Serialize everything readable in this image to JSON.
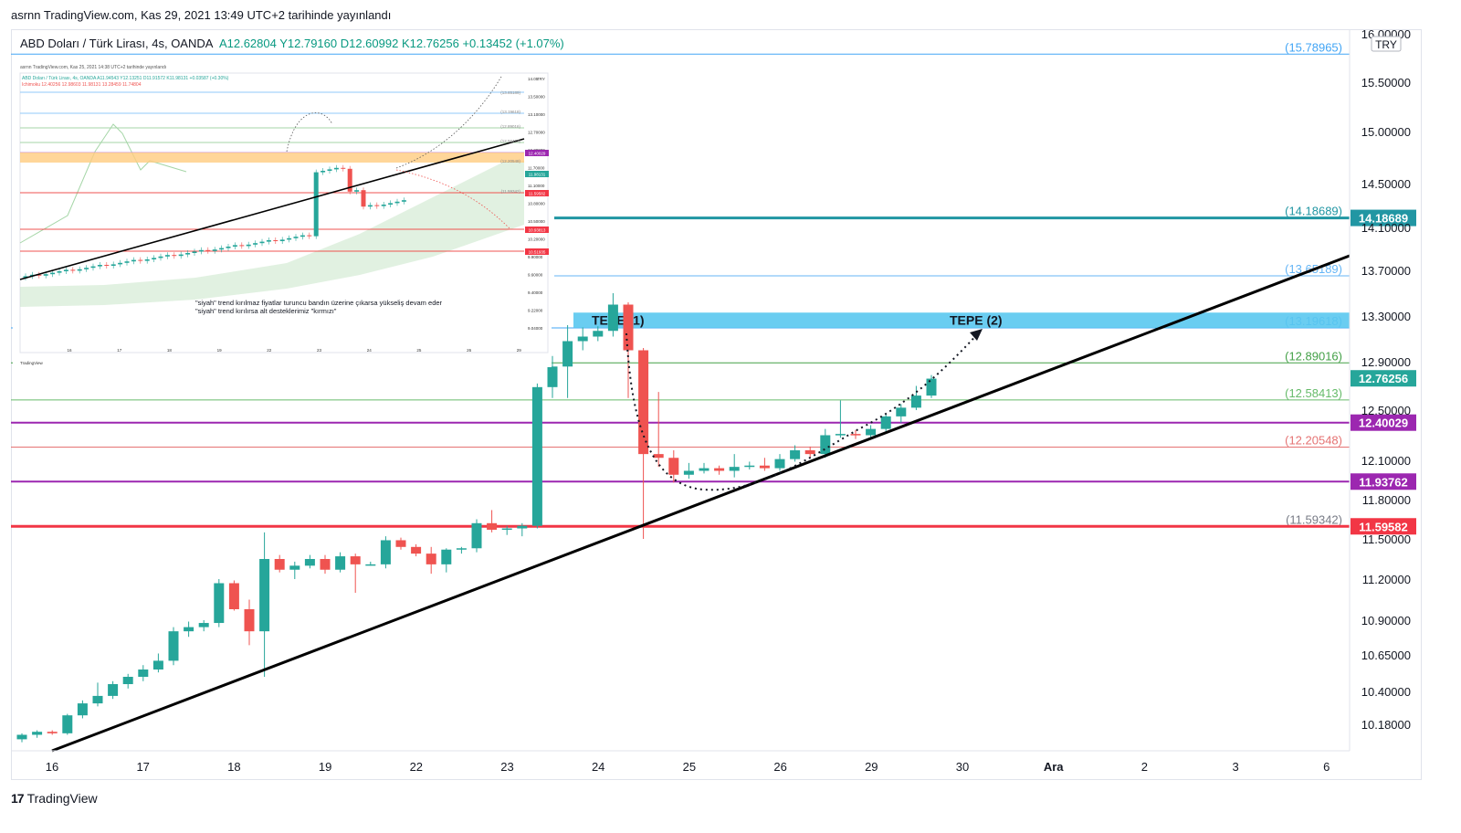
{
  "header": {
    "published": "asrnn TradingView.com, Kas 29, 2021 13:49 UTC+2 tarihinde yayınlandı",
    "symbol": "ABD Doları / Türk Lirası, 4s, OANDA",
    "ohlc": "A12.62804  Y12.79160  D12.60992  K12.76256  +0.13452 (+1.07%)"
  },
  "footer": {
    "logo_mark": "17",
    "logo_text": "TradingView"
  },
  "colors": {
    "up": "#26a69a",
    "down": "#ef5350",
    "teal_line": "#2196a3",
    "purple": "#9c27b0",
    "red": "#f23645",
    "green_line": "#66bb6a",
    "blue_zone": "#5ac8ef",
    "trend": "#000000"
  },
  "chart_data": {
    "type": "candlestick",
    "ylim": [
      10.0,
      16.0
    ],
    "currency_badge": "TRY",
    "y_ticks": [
      {
        "v": 16.0,
        "label": "16.00000"
      },
      {
        "v": 15.5,
        "label": "15.50000"
      },
      {
        "v": 15.0,
        "label": "15.00000"
      },
      {
        "v": 14.5,
        "label": "14.50000"
      },
      {
        "v": 14.1,
        "label": "14.10000"
      },
      {
        "v": 13.7,
        "label": "13.70000"
      },
      {
        "v": 13.3,
        "label": "13.30000"
      },
      {
        "v": 12.9,
        "label": "12.90000"
      },
      {
        "v": 12.5,
        "label": "12.50000"
      },
      {
        "v": 12.1,
        "label": "12.10000"
      },
      {
        "v": 11.8,
        "label": "11.80000"
      },
      {
        "v": 11.5,
        "label": "11.50000"
      },
      {
        "v": 11.2,
        "label": "11.20000"
      },
      {
        "v": 10.9,
        "label": "10.90000"
      },
      {
        "v": 10.65,
        "label": "10.65000"
      },
      {
        "v": 10.4,
        "label": "10.40000"
      },
      {
        "v": 10.18,
        "label": "10.18000"
      }
    ],
    "x_ticks": [
      "16",
      "17",
      "18",
      "19",
      "22",
      "23",
      "24",
      "25",
      "26",
      "29",
      "30",
      "Ara",
      "2",
      "3",
      "6"
    ],
    "levels": [
      {
        "value": 15.78965,
        "label": "(15.78965)",
        "color": "#42a5f5",
        "width": 1
      },
      {
        "value": 14.18689,
        "label": "(14.18689)",
        "color": "#2196a3",
        "width": 3,
        "badge": "14.18689"
      },
      {
        "value": 13.65189,
        "label": "(13.65189)",
        "color": "#64b5f6",
        "width": 1
      },
      {
        "value": 13.19618,
        "label": "(13.19618)",
        "color": "#42a5f5",
        "width": 1
      },
      {
        "value": 12.89016,
        "label": "(12.89016)",
        "color": "#43a047",
        "width": 1
      },
      {
        "value": 12.58413,
        "label": "(12.58413)",
        "color": "#66bb6a",
        "width": 1
      },
      {
        "value": 12.40029,
        "label": "",
        "color": "#9c27b0",
        "width": 2,
        "badge": "12.40029"
      },
      {
        "value": 12.20548,
        "label": "(12.20548)",
        "color": "#e57373",
        "width": 1
      },
      {
        "value": 11.93762,
        "label": "",
        "color": "#9c27b0",
        "width": 2,
        "badge": "11.93762"
      },
      {
        "value": 11.59342,
        "label": "(11.59342)",
        "color": "#9e9e9e",
        "width": 0
      },
      {
        "value": 11.59582,
        "label": "",
        "color": "#f23645",
        "width": 3,
        "badge": "11.59582"
      }
    ],
    "last_price": {
      "value": 12.76256,
      "label": "12.76256"
    },
    "zone": {
      "from": 13.19618,
      "to": 13.33,
      "labels": [
        "TEPE (1)",
        "TEPE (2)"
      ]
    },
    "trend_line": {
      "from": [
        0,
        10.02
      ],
      "to": [
        1.0,
        13.85
      ]
    },
    "candles": [
      [
        10.08,
        10.12,
        10.06,
        10.11
      ],
      [
        10.11,
        10.14,
        10.09,
        10.13
      ],
      [
        10.13,
        10.14,
        10.11,
        10.12
      ],
      [
        10.12,
        10.25,
        10.11,
        10.24
      ],
      [
        10.24,
        10.34,
        10.22,
        10.32
      ],
      [
        10.32,
        10.46,
        10.3,
        10.37
      ],
      [
        10.37,
        10.47,
        10.35,
        10.45
      ],
      [
        10.45,
        10.52,
        10.42,
        10.5
      ],
      [
        10.5,
        10.58,
        10.47,
        10.55
      ],
      [
        10.55,
        10.66,
        10.53,
        10.61
      ],
      [
        10.61,
        10.85,
        10.58,
        10.82
      ],
      [
        10.82,
        10.89,
        10.78,
        10.85
      ],
      [
        10.85,
        10.9,
        10.82,
        10.88
      ],
      [
        10.88,
        11.2,
        10.85,
        11.17
      ],
      [
        11.17,
        11.19,
        10.97,
        10.98
      ],
      [
        10.98,
        11.05,
        10.72,
        10.82
      ],
      [
        10.82,
        11.55,
        10.5,
        11.35
      ],
      [
        11.35,
        11.38,
        11.25,
        11.27
      ],
      [
        11.27,
        11.33,
        11.2,
        11.3
      ],
      [
        11.3,
        11.38,
        11.28,
        11.35
      ],
      [
        11.35,
        11.38,
        11.24,
        11.27
      ],
      [
        11.27,
        11.4,
        11.25,
        11.37
      ],
      [
        11.37,
        11.39,
        11.1,
        11.31
      ],
      [
        11.31,
        11.33,
        11.3,
        11.31
      ],
      [
        11.31,
        11.52,
        11.28,
        11.49
      ],
      [
        11.49,
        11.51,
        11.42,
        11.44
      ],
      [
        11.44,
        11.46,
        11.37,
        11.39
      ],
      [
        11.39,
        11.44,
        11.24,
        11.31
      ],
      [
        11.31,
        11.43,
        11.25,
        11.42
      ],
      [
        11.42,
        11.44,
        11.39,
        11.43
      ],
      [
        11.43,
        11.65,
        11.4,
        11.62
      ],
      [
        11.62,
        11.72,
        11.55,
        11.57
      ],
      [
        11.57,
        11.6,
        11.53,
        11.58
      ],
      [
        11.58,
        11.62,
        11.52,
        11.6
      ],
      [
        11.6,
        12.72,
        11.58,
        12.69
      ],
      [
        12.69,
        12.95,
        12.6,
        12.86
      ],
      [
        12.86,
        13.22,
        12.6,
        13.08
      ],
      [
        13.08,
        13.2,
        13.0,
        13.12
      ],
      [
        13.12,
        13.21,
        13.08,
        13.17
      ],
      [
        13.17,
        13.5,
        13.12,
        13.4
      ],
      [
        13.4,
        13.42,
        12.6,
        13.0
      ],
      [
        13.0,
        13.02,
        11.5,
        12.15
      ],
      [
        12.15,
        12.65,
        12.05,
        12.12
      ],
      [
        12.12,
        12.18,
        11.93,
        11.99
      ],
      [
        11.99,
        12.08,
        11.96,
        12.02
      ],
      [
        12.02,
        12.08,
        12.0,
        12.04
      ],
      [
        12.04,
        12.06,
        11.99,
        12.02
      ],
      [
        12.02,
        12.15,
        11.97,
        12.05
      ],
      [
        12.05,
        12.09,
        12.03,
        12.06
      ],
      [
        12.06,
        12.12,
        12.02,
        12.04
      ],
      [
        12.04,
        12.15,
        12.02,
        12.11
      ],
      [
        12.11,
        12.22,
        12.09,
        12.18
      ],
      [
        12.18,
        12.21,
        12.12,
        12.15
      ],
      [
        12.15,
        12.35,
        12.12,
        12.3
      ],
      [
        12.3,
        12.58,
        12.28,
        12.31
      ],
      [
        12.31,
        12.34,
        12.27,
        12.3
      ],
      [
        12.3,
        12.38,
        12.28,
        12.35
      ],
      [
        12.35,
        12.47,
        12.33,
        12.45
      ],
      [
        12.45,
        12.55,
        12.4,
        12.52
      ],
      [
        12.52,
        12.7,
        12.5,
        12.62
      ],
      [
        12.62,
        12.79,
        12.6,
        12.76
      ]
    ],
    "inset": {
      "published": "asrnn TradingView.com, Kas 25, 2021 14:38 UTC+2 tarihinde yayınlandı",
      "symbol": "ABD Doları / Türk Lirası, 4s, OANDA  A11.94543  Y12.13251  D11.91572  K11.98131  +0.03587 (+0.30%)",
      "ichimoku": "Ichimoku  12.40256  12.98603  11.98131  13.28459  11.74804",
      "currency_badge": "TRY",
      "note_line1": "\"siyah\" trend kırılmaz  fiyatlar turuncu bandın üzerine çıkarsa yükseliş devam eder",
      "note_line2": "\"siyah\" trend kırılırsa alt desteklerimiz \"kırmızı\"",
      "x_ticks": [
        "16",
        "17",
        "18",
        "19",
        "22",
        "23",
        "24",
        "25",
        "26",
        "29",
        "30"
      ],
      "y_ticks": [
        "14.05",
        "13.50000",
        "13.10000",
        "12.70000",
        "12.30000",
        "11.70000",
        "11.10000",
        "10.80000",
        "10.50000",
        "10.20000",
        "9.90000",
        "9.60000",
        "9.40000",
        "9.22000",
        "9.04000"
      ],
      "badges": [
        {
          "label": "12.40029",
          "color": "#9c27b0"
        },
        {
          "label": "11.98131",
          "color": "#26a69a"
        },
        {
          "label": "11.59582",
          "color": "#f23645"
        },
        {
          "label": "10.93813",
          "color": "#f23645"
        },
        {
          "label": "10.51935",
          "color": "#f23645"
        }
      ],
      "levels_labels": [
        "(13.65189)",
        "(13.19618)",
        "(12.89016)",
        "(12.58413)",
        "(12.20548)",
        "(11.59342)"
      ],
      "footer": "TradingView"
    }
  }
}
